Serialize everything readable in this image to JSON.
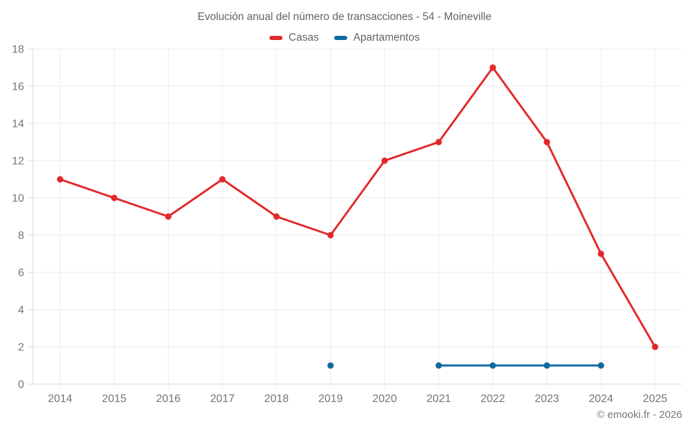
{
  "title": "Evolución anual del número de transacciones - 54 - Moineville",
  "footer": "© emooki.fr - 2026",
  "colors": {
    "casas": "#e2282a",
    "apartamentos": "#1168a0",
    "grid": "#ebebeb",
    "axis": "#d9d9d9",
    "tick_text": "#757575",
    "title_text": "#5f6368"
  },
  "legend": {
    "items": [
      {
        "label": "Casas",
        "color": "#e2282a"
      },
      {
        "label": "Apartamentos",
        "color": "#1168a0"
      }
    ]
  },
  "chart_data": {
    "type": "line",
    "title": "Evolución anual del número de transacciones - 54 - Moineville",
    "categories": [
      "2014",
      "2015",
      "2016",
      "2017",
      "2018",
      "2019",
      "2020",
      "2021",
      "2022",
      "2023",
      "2024",
      "2025"
    ],
    "series": [
      {
        "name": "Casas",
        "color": "#e2282a",
        "values": [
          11,
          10,
          9,
          11,
          9,
          8,
          12,
          13,
          17,
          13,
          7,
          2
        ]
      },
      {
        "name": "Apartamentos",
        "color": "#1168a0",
        "values": [
          null,
          null,
          null,
          null,
          null,
          1,
          null,
          1,
          1,
          1,
          1,
          null
        ]
      }
    ],
    "xlabel": "",
    "ylabel": "",
    "ylim": [
      0,
      18
    ],
    "ytick_step": 2,
    "yticks": [
      0,
      2,
      4,
      6,
      8,
      10,
      12,
      14,
      16,
      18
    ],
    "grid": true,
    "legend_position": "top"
  }
}
